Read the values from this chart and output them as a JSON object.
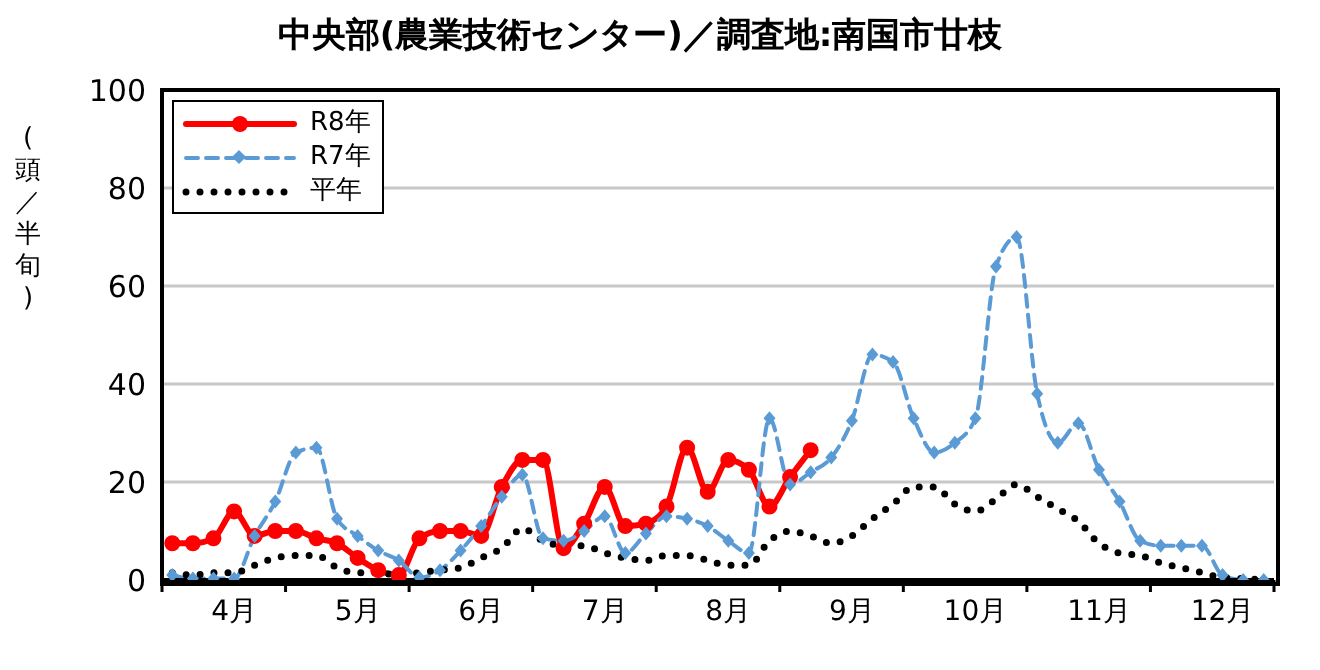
{
  "chart_data": {
    "type": "line",
    "title": "中央部(農業技術センター)／調査地:南国市廿枝",
    "ylabel": "(頭／半旬)",
    "categories": [
      null,
      null,
      null,
      "4月",
      null,
      null,
      null,
      null,
      null,
      "5月",
      null,
      null,
      null,
      null,
      null,
      "6月",
      null,
      null,
      null,
      null,
      null,
      "7月",
      null,
      null,
      null,
      null,
      null,
      "8月",
      null,
      null,
      null,
      null,
      null,
      "9月",
      null,
      null,
      null,
      null,
      null,
      "10月",
      null,
      null,
      null,
      null,
      null,
      "11月",
      null,
      null,
      null,
      null,
      null,
      "12月",
      null,
      null
    ],
    "ylim": [
      0,
      100
    ],
    "yticks": [
      0,
      20,
      40,
      60,
      80,
      100
    ],
    "grid": "y",
    "legend": "top left",
    "series": [
      {
        "name": "R8年",
        "color": "#ff0000",
        "marker": "circle",
        "line_style": "solid",
        "values": [
          7.5,
          7.5,
          8.5,
          14,
          9,
          10,
          10,
          8.5,
          7.5,
          4.5,
          2,
          1,
          8.5,
          10,
          10,
          9,
          19,
          24.5,
          24.5,
          6.5,
          11.5,
          19,
          11,
          11.5,
          15,
          27,
          18,
          24.5,
          22.5,
          15,
          21,
          26.5,
          null,
          null,
          null,
          null,
          null,
          null,
          null,
          null,
          null,
          null,
          null,
          null,
          null,
          null,
          null,
          null,
          null,
          null,
          null,
          null,
          null,
          null
        ]
      },
      {
        "name": "R7年",
        "color": "#5b9bd5",
        "marker": "diamond",
        "line_style": "dashed",
        "values": [
          1,
          0.3,
          0.3,
          0.3,
          9,
          16,
          26,
          27,
          12.5,
          9,
          6,
          4,
          0.5,
          2,
          6,
          11,
          17,
          21.5,
          8.5,
          8,
          10,
          13,
          5.5,
          9.5,
          13,
          12.5,
          11,
          8,
          5.5,
          33,
          19.5,
          22,
          25,
          32.5,
          46,
          44.5,
          33,
          26,
          28,
          33,
          64,
          70,
          38,
          28,
          32,
          22.5,
          16,
          8,
          7,
          7,
          7,
          1,
          0,
          0
        ]
      },
      {
        "name": "平年",
        "color": "#000000",
        "marker": "none",
        "line_style": "dotted",
        "values": [
          1.5,
          1,
          1.5,
          1.5,
          3,
          4.5,
          5,
          5,
          2.5,
          1.5,
          1.5,
          1,
          1.5,
          2,
          2.5,
          4.5,
          6.5,
          10.5,
          8,
          7,
          7,
          5.5,
          4.5,
          4,
          5,
          5,
          4,
          3,
          3,
          8,
          10,
          9,
          7.5,
          9,
          12.5,
          15.5,
          19,
          19,
          15.5,
          14,
          16.5,
          19.5,
          17,
          14.5,
          12,
          7.5,
          5.5,
          5,
          3.5,
          2.5,
          1.5,
          0.5,
          0.3,
          0
        ]
      }
    ]
  }
}
